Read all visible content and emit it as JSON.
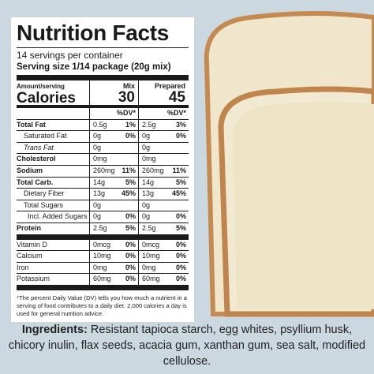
{
  "label": {
    "title": "Nutrition Facts",
    "servings": "14 servings per container",
    "serving_size": "Serving size 1/14 package (20g mix)",
    "amount_per_serving": "Amount/serving",
    "calories_label": "Calories",
    "columns": [
      {
        "name": "Mix",
        "calories": 30,
        "dv_header": "%DV*"
      },
      {
        "name": "Prepared",
        "calories": 45,
        "dv_header": "%DV*"
      }
    ],
    "rows": [
      {
        "name": "Total Fat",
        "mix": "0.5g",
        "mix_dv": "1%",
        "prepared": "2.5g",
        "prepared_dv": "3%"
      },
      {
        "name": "Saturated Fat",
        "mix": "0g",
        "mix_dv": "0%",
        "prepared": "0g",
        "prepared_dv": "0%"
      },
      {
        "name": "Trans Fat",
        "mix": "0g",
        "prepared": "0g"
      },
      {
        "name": "Cholesterol",
        "mix": "0mg",
        "prepared": "0mg"
      },
      {
        "name": "Sodium",
        "mix": "260mg",
        "mix_dv": "11%",
        "prepared": "260mg",
        "prepared_dv": "11%"
      },
      {
        "name": "Total Carb.",
        "mix": "14g",
        "mix_dv": "5%",
        "prepared": "14g",
        "prepared_dv": "5%"
      },
      {
        "name": "Dietary Fiber",
        "mix": "13g",
        "mix_dv": "45%",
        "prepared": "13g",
        "prepared_dv": "45%"
      },
      {
        "name": "Total Sugars",
        "mix": "0g",
        "prepared": "0g"
      },
      {
        "name": "Incl. Added Sugars",
        "mix": "0g",
        "mix_dv": "0%",
        "prepared": "0g",
        "prepared_dv": "0%"
      },
      {
        "name": "Protein",
        "mix": "2.5g",
        "mix_dv": "5%",
        "prepared": "2.5g",
        "prepared_dv": "5%"
      },
      {
        "name": "Vitamin D",
        "mix": "0mcg",
        "mix_dv": "0%",
        "prepared": "0mcg",
        "prepared_dv": "0%"
      },
      {
        "name": "Calcium",
        "mix": "10mg",
        "mix_dv": "0%",
        "prepared": "10mg",
        "prepared_dv": "0%"
      },
      {
        "name": "Iron",
        "mix": "0mg",
        "mix_dv": "0%",
        "prepared": "0mg",
        "prepared_dv": "0%"
      },
      {
        "name": "Potassium",
        "mix": "60mg",
        "mix_dv": "0%",
        "prepared": "60mg",
        "prepared_dv": "0%"
      }
    ],
    "footnote": "*The percent Daily Value (DV) tells you how much a nutrient in a serving of food contributes to a daily diet. 2,000 calories a day is used for general nutrition advice."
  },
  "ingredients": {
    "label": "Ingredients:",
    "text": "Resistant tapioca starch, egg whites, psyllium husk, chicory inulin, flax seeds, acacia gum, xanthan gum, sea salt, modified cellulose."
  }
}
